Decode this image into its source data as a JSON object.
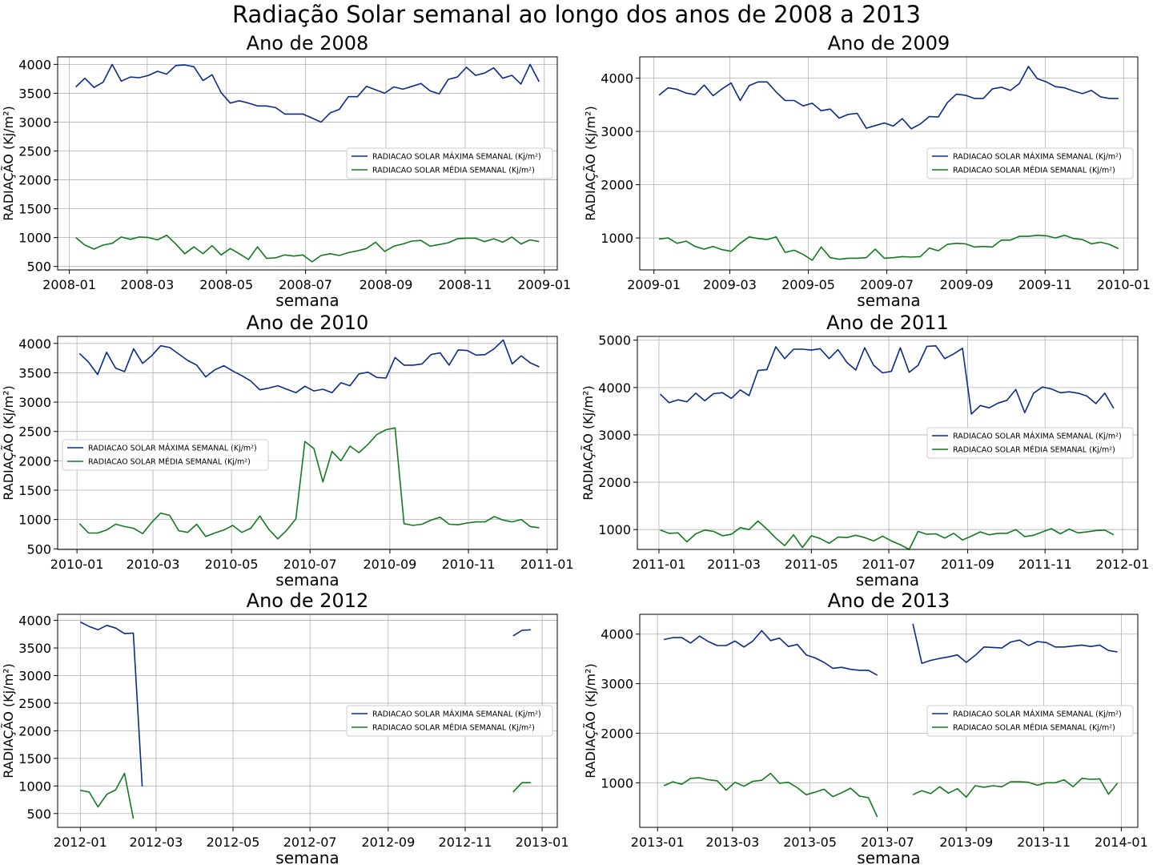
{
  "figure": {
    "suptitle": "Radiação Solar semanal ao longo dos anos de 2008 a 2013",
    "xlabel": "semana",
    "ylabel": "RADIAÇÃO (Kj/m²)",
    "legend_labels": [
      "RADIACAO SOLAR MÁXIMA SEMANAL (Kj/m²)",
      "RADIACAO SOLAR MÉDIA SEMANAL (Kj/m²)"
    ],
    "colors": {
      "max": "#0c2a8a",
      "mean": "#117a1f",
      "grid": "#b0b0b0"
    }
  },
  "chart_data": [
    {
      "type": "line",
      "title": "Ano de 2008",
      "xlabel": "semana",
      "ylabel": "RADIAÇÃO (Kj/m²)",
      "x_start": "2008-01-06",
      "x_step_days": 7,
      "xlim": [
        "2007-12-23",
        "2009-01-11"
      ],
      "xticks": [
        "2008-01",
        "2008-03",
        "2008-05",
        "2008-07",
        "2008-09",
        "2008-11",
        "2009-01"
      ],
      "ylim": [
        440,
        4130
      ],
      "yticks": [
        500,
        1000,
        1500,
        2000,
        2500,
        3000,
        3500,
        4000
      ],
      "legend": "center-right",
      "grid": true,
      "series": [
        {
          "name": "RADIACAO SOLAR MÁXIMA SEMANAL (Kj/m²)",
          "values": [
            3610,
            3760,
            3600,
            3690,
            4000,
            3710,
            3780,
            3770,
            3810,
            3880,
            3830,
            3980,
            3990,
            3960,
            3720,
            3820,
            3510,
            3330,
            3370,
            3330,
            3280,
            3280,
            3250,
            3140,
            3140,
            3140,
            3070,
            3000,
            3160,
            3220,
            3440,
            3440,
            3620,
            3560,
            3500,
            3610,
            3570,
            3620,
            3670,
            3540,
            3490,
            3740,
            3780,
            3950,
            3810,
            3850,
            3940,
            3760,
            3810,
            3660,
            4000,
            3700
          ]
        },
        {
          "name": "RADIACAO SOLAR MÉDIA SEMANAL (Kj/m²)",
          "values": [
            1000,
            870,
            800,
            870,
            900,
            1010,
            970,
            1010,
            1000,
            960,
            1040,
            890,
            720,
            840,
            720,
            860,
            700,
            810,
            720,
            620,
            840,
            640,
            650,
            700,
            680,
            700,
            580,
            690,
            720,
            690,
            740,
            770,
            810,
            920,
            760,
            850,
            890,
            940,
            950,
            850,
            880,
            910,
            980,
            990,
            990,
            930,
            980,
            920,
            1010,
            890,
            960,
            930
          ]
        }
      ]
    },
    {
      "type": "line",
      "title": "Ano de 2009",
      "xlabel": "semana",
      "ylabel": "RADIAÇÃO (Kj/m²)",
      "x_start": "2009-01-05",
      "x_step_days": 7,
      "xlim": [
        "2008-12-21",
        "2010-01-12"
      ],
      "xticks": [
        "2009-01",
        "2009-03",
        "2009-05",
        "2009-07",
        "2009-09",
        "2009-11",
        "2010-01"
      ],
      "ylim": [
        400,
        4400
      ],
      "yticks": [
        1000,
        2000,
        3000,
        4000
      ],
      "legend": "center-right",
      "grid": true,
      "series": [
        {
          "name": "RADIACAO SOLAR MÁXIMA SEMANAL (Kj/m²)",
          "values": [
            3680,
            3820,
            3790,
            3720,
            3690,
            3870,
            3670,
            3800,
            3910,
            3580,
            3860,
            3930,
            3930,
            3740,
            3580,
            3580,
            3480,
            3530,
            3390,
            3420,
            3250,
            3320,
            3340,
            3060,
            3110,
            3160,
            3100,
            3240,
            3050,
            3140,
            3280,
            3270,
            3540,
            3700,
            3680,
            3620,
            3620,
            3800,
            3830,
            3770,
            3900,
            4220,
            3990,
            3930,
            3840,
            3820,
            3760,
            3710,
            3770,
            3650,
            3620,
            3620
          ]
        },
        {
          "name": "RADIACAO SOLAR MÉDIA SEMANAL (Kj/m²)",
          "values": [
            980,
            1000,
            900,
            940,
            840,
            790,
            840,
            780,
            750,
            900,
            1020,
            990,
            970,
            1020,
            730,
            770,
            690,
            580,
            830,
            630,
            600,
            620,
            620,
            630,
            790,
            620,
            630,
            650,
            640,
            650,
            810,
            760,
            880,
            900,
            890,
            830,
            840,
            830,
            960,
            960,
            1030,
            1030,
            1050,
            1040,
            1000,
            1050,
            990,
            970,
            890,
            920,
            880,
            800
          ]
        }
      ]
    },
    {
      "type": "line",
      "title": "Ano de 2010",
      "xlabel": "semana",
      "ylabel": "RADIAÇÃO (Kj/m²)",
      "x_start": "2010-01-03",
      "x_step_days": 7,
      "xlim": [
        "2009-12-17",
        "2011-01-09"
      ],
      "xticks": [
        "2010-01",
        "2010-03",
        "2010-05",
        "2010-07",
        "2010-09",
        "2010-11",
        "2011-01"
      ],
      "ylim": [
        490,
        4120
      ],
      "yticks": [
        500,
        1000,
        1500,
        2000,
        2500,
        3000,
        3500,
        4000
      ],
      "legend": "center-left",
      "grid": true,
      "series": [
        {
          "name": "RADIACAO SOLAR MÁXIMA SEMANAL (Kj/m²)",
          "values": [
            3830,
            3680,
            3470,
            3850,
            3580,
            3520,
            3910,
            3660,
            3790,
            3960,
            3930,
            3820,
            3710,
            3630,
            3430,
            3550,
            3620,
            3530,
            3450,
            3360,
            3210,
            3240,
            3280,
            3220,
            3160,
            3270,
            3190,
            3220,
            3160,
            3330,
            3280,
            3480,
            3510,
            3420,
            3410,
            3760,
            3630,
            3630,
            3650,
            3810,
            3840,
            3630,
            3890,
            3880,
            3800,
            3810,
            3910,
            4060,
            3650,
            3790,
            3670,
            3600
          ]
        },
        {
          "name": "RADIACAO SOLAR MÉDIA SEMANAL (Kj/m²)",
          "values": [
            930,
            770,
            770,
            820,
            920,
            880,
            850,
            760,
            950,
            1110,
            1070,
            810,
            780,
            920,
            710,
            770,
            820,
            900,
            780,
            850,
            1060,
            830,
            670,
            820,
            1010,
            2330,
            2210,
            1640,
            2160,
            2000,
            2250,
            2140,
            2280,
            2450,
            2530,
            2560,
            930,
            900,
            920,
            990,
            1040,
            920,
            910,
            940,
            960,
            960,
            1050,
            990,
            960,
            1000,
            880,
            860
          ]
        }
      ]
    },
    {
      "type": "line",
      "title": "Ano de 2011",
      "xlabel": "semana",
      "ylabel": "RADIAÇÃO (Kj/m²)",
      "x_start": "2011-01-02",
      "x_step_days": 7,
      "xlim": [
        "2010-12-15",
        "2012-01-13"
      ],
      "xticks": [
        "2011-01",
        "2011-03",
        "2011-05",
        "2011-07",
        "2011-09",
        "2011-11",
        "2012-01"
      ],
      "ylim": [
        580,
        5080
      ],
      "yticks": [
        1000,
        2000,
        3000,
        4000,
        5000
      ],
      "legend": "center-right",
      "grid": true,
      "series": [
        {
          "name": "RADIACAO SOLAR MÁXIMA SEMANAL (Kj/m²)",
          "values": [
            3860,
            3680,
            3740,
            3700,
            3880,
            3720,
            3870,
            3890,
            3770,
            3950,
            3830,
            4360,
            4380,
            4860,
            4610,
            4810,
            4810,
            4790,
            4820,
            4610,
            4800,
            4530,
            4370,
            4840,
            4470,
            4310,
            4340,
            4840,
            4320,
            4470,
            4870,
            4880,
            4610,
            4710,
            4830,
            3440,
            3620,
            3570,
            3670,
            3730,
            3960,
            3470,
            3880,
            4010,
            3970,
            3890,
            3910,
            3880,
            3820,
            3660,
            3880,
            3560
          ]
        },
        {
          "name": "RADIACAO SOLAR MÉDIA SEMANAL (Kj/m²)",
          "values": [
            990,
            920,
            930,
            740,
            910,
            990,
            960,
            870,
            900,
            1040,
            1000,
            1180,
            1010,
            820,
            660,
            890,
            620,
            870,
            810,
            710,
            840,
            830,
            880,
            830,
            760,
            860,
            760,
            680,
            580,
            960,
            900,
            910,
            820,
            920,
            780,
            860,
            950,
            890,
            920,
            920,
            1000,
            850,
            880,
            950,
            1020,
            910,
            1010,
            930,
            950,
            980,
            990,
            890
          ]
        }
      ]
    },
    {
      "type": "line",
      "title": "Ano de 2012",
      "xlabel": "semana",
      "ylabel": "RADIAÇÃO (Kj/m²)",
      "x_start": "2012-01-01",
      "x_step_days": 7,
      "xlim": [
        "2011-12-14",
        "2013-01-13"
      ],
      "xticks": [
        "2012-01",
        "2012-03",
        "2012-05",
        "2012-07",
        "2012-09",
        "2012-11",
        "2013-01"
      ],
      "ylim": [
        250,
        4110
      ],
      "yticks": [
        500,
        1000,
        1500,
        2000,
        2500,
        3000,
        3500,
        4000
      ],
      "legend": "center-right",
      "grid": true,
      "series": [
        {
          "name": "RADIACAO SOLAR MÁXIMA SEMANAL (Kj/m²)",
          "values": [
            3970,
            3890,
            3830,
            3910,
            3860,
            3760,
            3770,
            990,
            null,
            null,
            null,
            null,
            null,
            null,
            null,
            null,
            null,
            null,
            null,
            null,
            null,
            null,
            null,
            null,
            null,
            null,
            null,
            null,
            null,
            null,
            null,
            null,
            null,
            null,
            null,
            null,
            null,
            null,
            null,
            null,
            null,
            null,
            null,
            null,
            null,
            null,
            null,
            null,
            null,
            3720,
            3820,
            3830
          ]
        },
        {
          "name": "RADIACAO SOLAR MÉDIA SEMANAL (Kj/m²)",
          "values": [
            920,
            890,
            620,
            850,
            930,
            1230,
            410,
            null,
            null,
            null,
            null,
            null,
            null,
            null,
            null,
            null,
            null,
            null,
            null,
            null,
            null,
            null,
            null,
            null,
            null,
            null,
            null,
            null,
            null,
            null,
            null,
            null,
            null,
            null,
            null,
            null,
            null,
            null,
            null,
            null,
            null,
            null,
            null,
            null,
            null,
            null,
            null,
            null,
            null,
            890,
            1060,
            1060
          ]
        }
      ]
    },
    {
      "type": "line",
      "title": "Ano de 2013",
      "xlabel": "semana",
      "ylabel": "RADIAÇÃO (Kj/m²)",
      "x_start": "2013-01-06",
      "x_step_days": 7,
      "xlim": [
        "2012-12-18",
        "2014-01-14"
      ],
      "xticks": [
        "2013-01",
        "2013-03",
        "2013-05",
        "2013-07",
        "2013-09",
        "2013-11",
        "2014-01"
      ],
      "ylim": [
        100,
        4400
      ],
      "yticks": [
        1000,
        2000,
        3000,
        4000
      ],
      "legend": "center-right",
      "grid": true,
      "series": [
        {
          "name": "RADIACAO SOLAR MÁXIMA SEMANAL (Kj/m²)",
          "values": [
            3890,
            3930,
            3930,
            3820,
            3960,
            3850,
            3770,
            3770,
            3860,
            3740,
            3860,
            4070,
            3870,
            3920,
            3750,
            3790,
            3580,
            3520,
            3430,
            3310,
            3330,
            3290,
            3270,
            3270,
            3170,
            null,
            null,
            null,
            4210,
            3410,
            3470,
            3510,
            3540,
            3580,
            3430,
            3570,
            3740,
            3730,
            3720,
            3840,
            3880,
            3770,
            3850,
            3830,
            3740,
            3740,
            3760,
            3780,
            3750,
            3780,
            3670,
            3640
          ]
        },
        {
          "name": "RADIACAO SOLAR MÉDIA SEMANAL (Kj/m²)",
          "values": [
            940,
            1020,
            970,
            1090,
            1100,
            1060,
            1040,
            850,
            1010,
            930,
            1030,
            1050,
            1190,
            990,
            1010,
            900,
            760,
            810,
            870,
            720,
            800,
            890,
            730,
            700,
            310,
            null,
            null,
            null,
            760,
            840,
            780,
            920,
            790,
            880,
            710,
            940,
            910,
            940,
            920,
            1020,
            1020,
            1010,
            950,
            1000,
            1000,
            1060,
            920,
            1090,
            1070,
            1080,
            770,
            990
          ]
        }
      ]
    }
  ]
}
